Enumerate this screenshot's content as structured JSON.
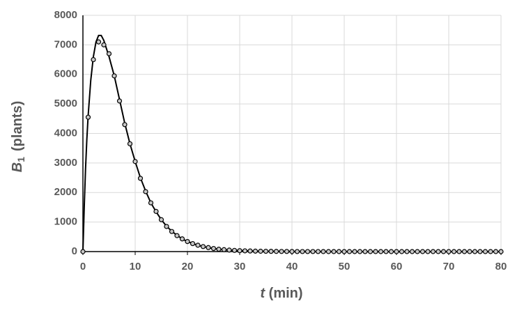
{
  "chart_data": {
    "type": "scatter",
    "x_label": {
      "symbol": "t",
      "unit": "(min)"
    },
    "y_label": {
      "symbol": "B",
      "subscript": "1",
      "unit": "(plants)"
    },
    "xlim": [
      0,
      80
    ],
    "xticks": [
      0,
      10,
      20,
      30,
      40,
      50,
      60,
      70,
      80
    ],
    "ylim": [
      0,
      8000
    ],
    "yticks": [
      0,
      1000,
      2000,
      3000,
      4000,
      5000,
      6000,
      7000,
      8000
    ],
    "grid": true,
    "series": [
      {
        "type": "line",
        "color": "#000000",
        "x": [
          0,
          0.25,
          0.5,
          0.75,
          1,
          1.5,
          2,
          2.5,
          3,
          3.5,
          4,
          5,
          6,
          7,
          8,
          9,
          10,
          11,
          12,
          13,
          14,
          15,
          16,
          17,
          18,
          19,
          20,
          22,
          24,
          26,
          28,
          30,
          35,
          40,
          50,
          60,
          70,
          80
        ],
        "values": [
          0,
          1500,
          2800,
          3800,
          4600,
          5800,
          6600,
          7100,
          7320,
          7320,
          7150,
          6600,
          5950,
          5150,
          4350,
          3650,
          3050,
          2500,
          2050,
          1650,
          1350,
          1080,
          860,
          690,
          550,
          430,
          340,
          210,
          130,
          80,
          50,
          30,
          10,
          3,
          0,
          0,
          0,
          0
        ]
      },
      {
        "type": "scatter",
        "color": "#000000",
        "marker_fill": "#c8c8c8",
        "x": [
          0,
          1,
          2,
          3,
          4,
          5,
          6,
          7,
          8,
          9,
          10,
          11,
          12,
          13,
          14,
          15,
          16,
          17,
          18,
          19,
          20,
          21,
          22,
          23,
          24,
          25,
          26,
          27,
          28,
          29,
          30,
          31,
          32,
          33,
          34,
          35,
          36,
          37,
          38,
          39,
          40,
          41,
          42,
          43,
          44,
          45,
          46,
          47,
          48,
          49,
          50,
          51,
          52,
          53,
          54,
          55,
          56,
          57,
          58,
          59,
          60,
          61,
          62,
          63,
          64,
          65,
          66,
          67,
          68,
          69,
          70,
          71,
          72,
          73,
          74,
          75,
          76,
          77,
          78,
          79,
          80
        ],
        "values": [
          0,
          4550,
          6500,
          7100,
          7000,
          6700,
          5950,
          5100,
          4300,
          3650,
          3050,
          2480,
          2030,
          1650,
          1360,
          1080,
          850,
          680,
          540,
          430,
          340,
          270,
          215,
          170,
          135,
          105,
          80,
          65,
          50,
          40,
          30,
          25,
          20,
          15,
          12,
          10,
          8,
          6,
          5,
          4,
          3,
          2,
          2,
          1,
          1,
          1,
          0,
          0,
          0,
          0,
          0,
          0,
          0,
          0,
          0,
          0,
          0,
          0,
          0,
          0,
          0,
          0,
          0,
          0,
          0,
          0,
          0,
          0,
          0,
          0,
          0,
          0,
          0,
          0,
          0,
          0,
          0,
          0,
          0,
          0,
          0
        ]
      }
    ]
  }
}
